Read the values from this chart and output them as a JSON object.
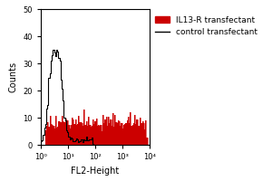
{
  "xlabel": "FL2-Height",
  "ylabel": "Counts",
  "xlim": [
    1,
    10000
  ],
  "ylim": [
    0,
    50
  ],
  "yticks": [
    0,
    10,
    20,
    30,
    40,
    50
  ],
  "xtick_locs": [
    1,
    10,
    100,
    1000,
    10000
  ],
  "xtick_labels": [
    "10⁰",
    "10¹",
    "10²",
    "10³",
    "10⁴"
  ],
  "legend_entries": [
    "IL13-R transfectant",
    "control transfectant"
  ],
  "red_color": "#cc0000",
  "black_color": "#000000",
  "background_color": "#ffffff",
  "figsize": [
    3.0,
    2.0
  ],
  "dpi": 100
}
